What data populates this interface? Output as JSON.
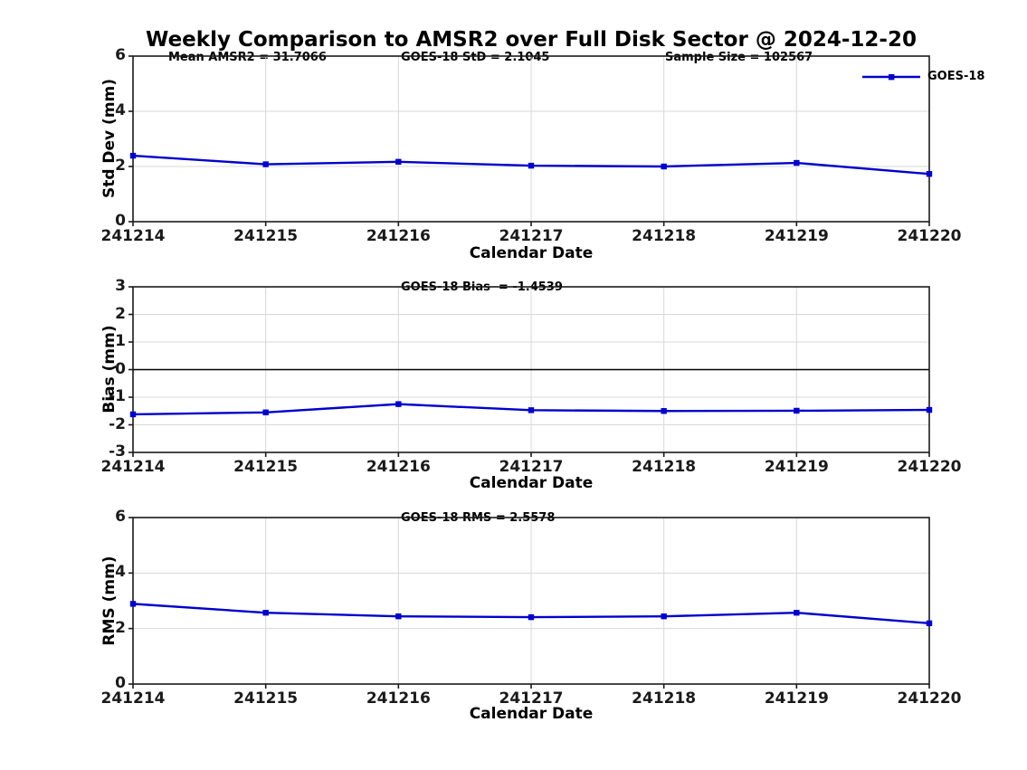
{
  "page": {
    "title": "Weekly Comparison to AMSR2 over Full Disk Sector @ 2024-12-20"
  },
  "colors": {
    "line": "#0000cc",
    "grid": "#d8d8d8",
    "frame": "#1a1a1a",
    "zero_line": "#000000"
  },
  "chart_data": [
    {
      "name": "std-dev",
      "type": "line",
      "ylabel": "Std Dev (mm)",
      "xlabel": "Calendar Date",
      "ylim": [
        0,
        6
      ],
      "yticks": [
        0,
        2,
        4,
        6
      ],
      "x": [
        241214,
        241215,
        241216,
        241217,
        241218,
        241219,
        241220
      ],
      "xticklabels": [
        "241214",
        "241215",
        "241216",
        "241217",
        "241218",
        "241219",
        "241220"
      ],
      "annotations": [
        "Mean AMSR2 = 31.7066",
        "GOES-18 StD = 2.1045",
        "Sample Size = 102567"
      ],
      "zero_line": false,
      "grid": true,
      "legend_position": "upper-right",
      "series": [
        {
          "name": "GOES-18",
          "color": "#0000cc",
          "marker": "square",
          "values": [
            2.39,
            2.08,
            2.17,
            2.03,
            2.0,
            2.13,
            1.73
          ]
        }
      ]
    },
    {
      "name": "bias",
      "type": "line",
      "ylabel": "Bias (mm)",
      "xlabel": "Calendar Date",
      "ylim": [
        -3,
        3
      ],
      "yticks": [
        -3,
        -2,
        -1,
        0,
        1,
        2,
        3
      ],
      "x": [
        241214,
        241215,
        241216,
        241217,
        241218,
        241219,
        241220
      ],
      "xticklabels": [
        "241214",
        "241215",
        "241216",
        "241217",
        "241218",
        "241219",
        "241220"
      ],
      "annotations": [
        "GOES-18 Bias  = -1.4539"
      ],
      "zero_line": true,
      "grid": true,
      "legend_position": "none",
      "series": [
        {
          "name": "GOES-18",
          "color": "#0000cc",
          "marker": "square",
          "values": [
            -1.62,
            -1.55,
            -1.25,
            -1.47,
            -1.5,
            -1.49,
            -1.46
          ]
        }
      ]
    },
    {
      "name": "rms",
      "type": "line",
      "ylabel": "RMS (mm)",
      "xlabel": "Calendar Date",
      "ylim": [
        0,
        6
      ],
      "yticks": [
        0,
        2,
        4,
        6
      ],
      "x": [
        241214,
        241215,
        241216,
        241217,
        241218,
        241219,
        241220
      ],
      "xticklabels": [
        "241214",
        "241215",
        "241216",
        "241217",
        "241218",
        "241219",
        "241220"
      ],
      "annotations": [
        "GOES-18 RMS = 2.5578"
      ],
      "zero_line": false,
      "grid": true,
      "legend_position": "none",
      "series": [
        {
          "name": "GOES-18",
          "color": "#0000cc",
          "marker": "square",
          "values": [
            2.89,
            2.57,
            2.44,
            2.41,
            2.44,
            2.57,
            2.19
          ]
        }
      ]
    }
  ]
}
